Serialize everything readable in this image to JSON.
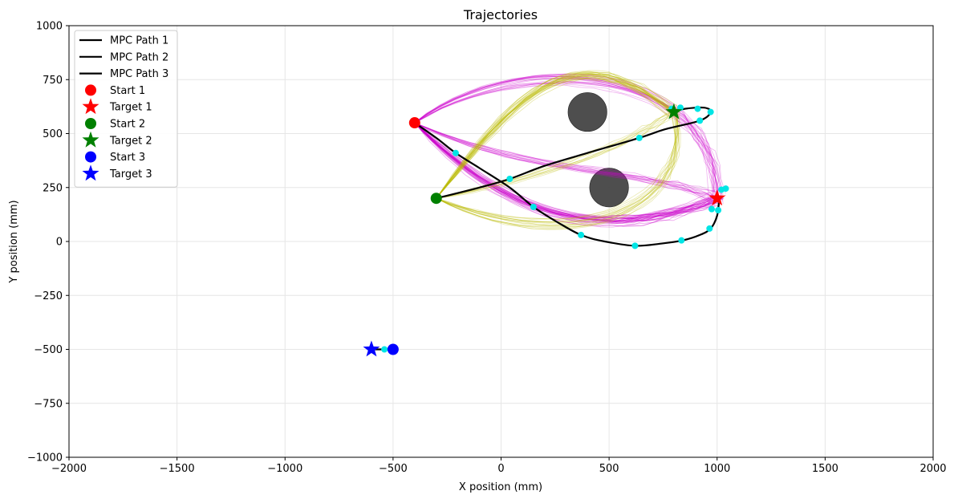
{
  "chart_data": {
    "type": "line",
    "title": "Trajectories",
    "xlabel": "X position (mm)",
    "ylabel": "Y position (mm)",
    "xlim": [
      -2000,
      2000
    ],
    "ylim": [
      -1000,
      1000
    ],
    "xticks": [
      -2000,
      -1500,
      -1000,
      -500,
      0,
      500,
      1000,
      1500,
      2000
    ],
    "yticks": [
      -1000,
      -750,
      -500,
      -250,
      0,
      250,
      500,
      750,
      1000
    ],
    "xtick_labels": [
      "−2000",
      "−1500",
      "−1000",
      "−500",
      "0",
      "500",
      "1000",
      "1500",
      "2000"
    ],
    "ytick_labels": [
      "−1000",
      "−750",
      "−500",
      "−250",
      "0",
      "250",
      "500",
      "750",
      "1000"
    ],
    "grid": true,
    "legend_position": "top-left",
    "legend": [
      {
        "label": "MPC Path 1",
        "kind": "line",
        "color": "#000000"
      },
      {
        "label": "MPC Path 2",
        "kind": "line",
        "color": "#000000"
      },
      {
        "label": "MPC Path 3",
        "kind": "line",
        "color": "#000000"
      },
      {
        "label": "Start 1",
        "kind": "circle",
        "color": "#ff0000"
      },
      {
        "label": "Target 1",
        "kind": "star",
        "color": "#ff0000"
      },
      {
        "label": "Start 2",
        "kind": "circle",
        "color": "#008000"
      },
      {
        "label": "Target 2",
        "kind": "star",
        "color": "#008000"
      },
      {
        "label": "Start 3",
        "kind": "circle",
        "color": "#0000ff"
      },
      {
        "label": "Target 3",
        "kind": "star",
        "color": "#0000ff"
      }
    ],
    "obstacles": [
      {
        "x": 400,
        "y": 600,
        "r": 90,
        "color": "#444444"
      },
      {
        "x": 500,
        "y": 250,
        "r": 90,
        "color": "#444444"
      }
    ],
    "series": [
      {
        "name": "MPC Path 1",
        "color": "#000000",
        "x": [
          -400,
          -300,
          -210,
          -100,
          40,
          150,
          260,
          370,
          480,
          620,
          740,
          840,
          920,
          970,
          1000,
          1010
        ],
        "y": [
          550,
          480,
          410,
          340,
          250,
          160,
          90,
          30,
          0,
          -20,
          -10,
          5,
          30,
          60,
          120,
          200
        ]
      },
      {
        "name": "MPC Path 2",
        "color": "#000000",
        "x": [
          -300,
          -100,
          40,
          200,
          400,
          640,
          760,
          920,
          970,
          940,
          850,
          800
        ],
        "y": [
          200,
          250,
          290,
          350,
          410,
          480,
          520,
          560,
          600,
          620,
          615,
          600
        ]
      },
      {
        "name": "MPC Path 3",
        "color": "#000000",
        "x": [
          -500,
          -540,
          -580,
          -600
        ],
        "y": [
          -500,
          -500,
          -500,
          -500
        ]
      }
    ],
    "waypoints": {
      "color": "#00e5e5",
      "points": [
        [
          -210,
          410
        ],
        [
          40,
          290
        ],
        [
          150,
          160
        ],
        [
          370,
          30
        ],
        [
          620,
          -20
        ],
        [
          835,
          5
        ],
        [
          965,
          60
        ],
        [
          975,
          150
        ],
        [
          1005,
          145
        ],
        [
          1020,
          240
        ],
        [
          1040,
          245
        ],
        [
          640,
          480
        ],
        [
          920,
          560
        ],
        [
          910,
          615
        ],
        [
          970,
          600
        ],
        [
          790,
          615
        ],
        [
          830,
          620
        ],
        [
          -540,
          -500
        ]
      ]
    },
    "markers": [
      {
        "name": "Start 1",
        "shape": "circle",
        "color": "#ff0000",
        "x": -400,
        "y": 550
      },
      {
        "name": "Target 1",
        "shape": "star",
        "color": "#ff0000",
        "x": 1000,
        "y": 200
      },
      {
        "name": "Start 2",
        "shape": "circle",
        "color": "#008000",
        "x": -300,
        "y": 200
      },
      {
        "name": "Target 2",
        "shape": "star",
        "color": "#008000",
        "x": 800,
        "y": 600
      },
      {
        "name": "Start 3",
        "shape": "circle",
        "color": "#0000ff",
        "x": -500,
        "y": -500
      },
      {
        "name": "Target 3",
        "shape": "star",
        "color": "#0000ff",
        "x": -600,
        "y": -500
      }
    ],
    "sample_trajectories": {
      "color_1": "#cc00cc",
      "color_2": "#bbbb00",
      "count_approx": 60
    }
  }
}
